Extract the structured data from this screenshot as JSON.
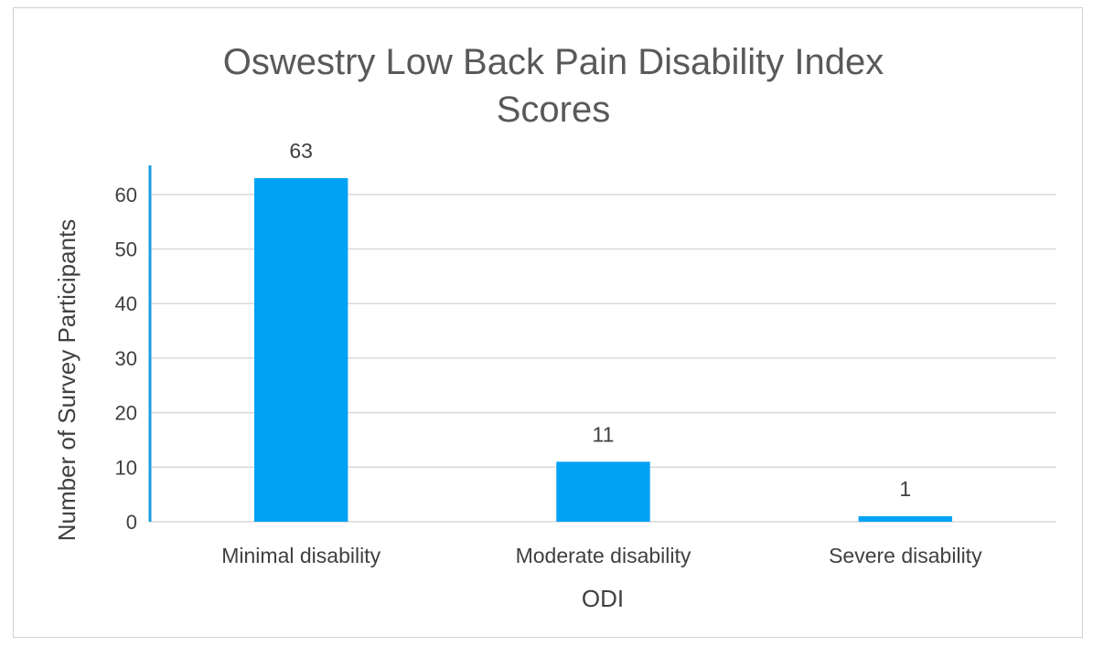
{
  "chart_data": {
    "type": "bar",
    "title_lines": [
      "Oswestry Low Back Pain Disability Index",
      "Scores"
    ],
    "xlabel": "ODI",
    "ylabel": "Number of Survey Participants",
    "categories": [
      "Minimal disability",
      "Moderate disability",
      "Severe disability"
    ],
    "values": [
      63,
      11,
      1
    ],
    "data_labels": [
      "63",
      "11",
      "1"
    ],
    "ylim": [
      0,
      65
    ],
    "yticks": [
      0,
      10,
      20,
      30,
      40,
      50,
      60
    ],
    "grid": true,
    "legend": "none",
    "bar_color": "#00a2f5",
    "axis_color": "#1a9de0",
    "grid_color": "#d9d9d9"
  }
}
